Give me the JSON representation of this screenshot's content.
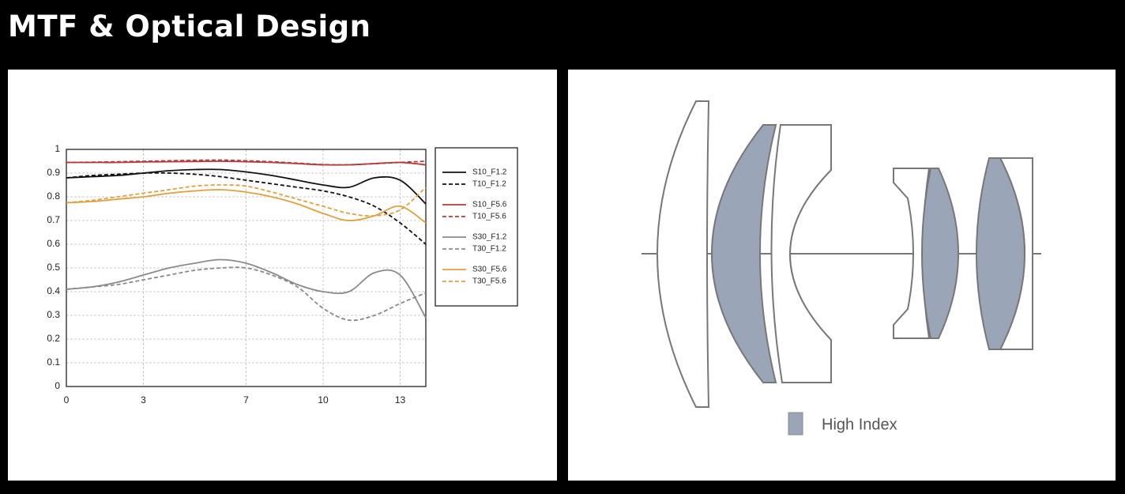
{
  "page": {
    "title": "MTF & Optical Design"
  },
  "chart_data": {
    "type": "line",
    "x": [
      0,
      1,
      2,
      3,
      4,
      5,
      6,
      7,
      8,
      9,
      10,
      11,
      12,
      13,
      14
    ],
    "xlim": [
      0,
      14
    ],
    "xticks": [
      0,
      3,
      7,
      10,
      13
    ],
    "ylim": [
      0,
      1
    ],
    "yticks": [
      0,
      0.1,
      0.2,
      0.3,
      0.4,
      0.5,
      0.6,
      0.7,
      0.8,
      0.9,
      1
    ],
    "grid": true,
    "legend": "right",
    "series": [
      {
        "name": "S10_F1.2",
        "color": "#111111",
        "dashed": false,
        "values": [
          0.88,
          0.885,
          0.89,
          0.9,
          0.91,
          0.915,
          0.915,
          0.905,
          0.89,
          0.87,
          0.85,
          0.84,
          0.88,
          0.87,
          0.77
        ]
      },
      {
        "name": "T10_F1.2",
        "color": "#111111",
        "dashed": true,
        "values": [
          0.88,
          0.89,
          0.895,
          0.9,
          0.9,
          0.895,
          0.885,
          0.87,
          0.855,
          0.84,
          0.825,
          0.8,
          0.76,
          0.69,
          0.6
        ]
      },
      {
        "name": "S10_F5.6",
        "color": "#b83a3a",
        "dashed": false,
        "values": [
          0.945,
          0.945,
          0.945,
          0.947,
          0.948,
          0.949,
          0.95,
          0.948,
          0.945,
          0.94,
          0.935,
          0.935,
          0.94,
          0.945,
          0.935
        ]
      },
      {
        "name": "T10_F5.6",
        "color": "#b83a3a",
        "dashed": true,
        "values": [
          0.945,
          0.946,
          0.948,
          0.95,
          0.952,
          0.954,
          0.955,
          0.952,
          0.948,
          0.942,
          0.936,
          0.935,
          0.94,
          0.945,
          0.95
        ]
      },
      {
        "name": "S30_F1.2",
        "color": "#8a8a8a",
        "dashed": false,
        "values": [
          0.41,
          0.42,
          0.44,
          0.47,
          0.5,
          0.52,
          0.535,
          0.52,
          0.48,
          0.43,
          0.4,
          0.4,
          0.48,
          0.47,
          0.29
        ]
      },
      {
        "name": "T30_F1.2",
        "color": "#8a8a8a",
        "dashed": true,
        "values": [
          0.41,
          0.42,
          0.43,
          0.45,
          0.47,
          0.49,
          0.5,
          0.5,
          0.47,
          0.42,
          0.33,
          0.28,
          0.3,
          0.35,
          0.395
        ]
      },
      {
        "name": "S30_F5.6",
        "color": "#e0a040",
        "dashed": false,
        "values": [
          0.775,
          0.78,
          0.79,
          0.8,
          0.815,
          0.825,
          0.83,
          0.82,
          0.8,
          0.77,
          0.73,
          0.7,
          0.72,
          0.76,
          0.69
        ]
      },
      {
        "name": "T30_F5.6",
        "color": "#e0a040",
        "dashed": true,
        "values": [
          0.775,
          0.785,
          0.8,
          0.815,
          0.83,
          0.845,
          0.85,
          0.845,
          0.82,
          0.79,
          0.76,
          0.73,
          0.72,
          0.745,
          0.84
        ]
      }
    ]
  },
  "diagram": {
    "legend_label": "High Index"
  }
}
